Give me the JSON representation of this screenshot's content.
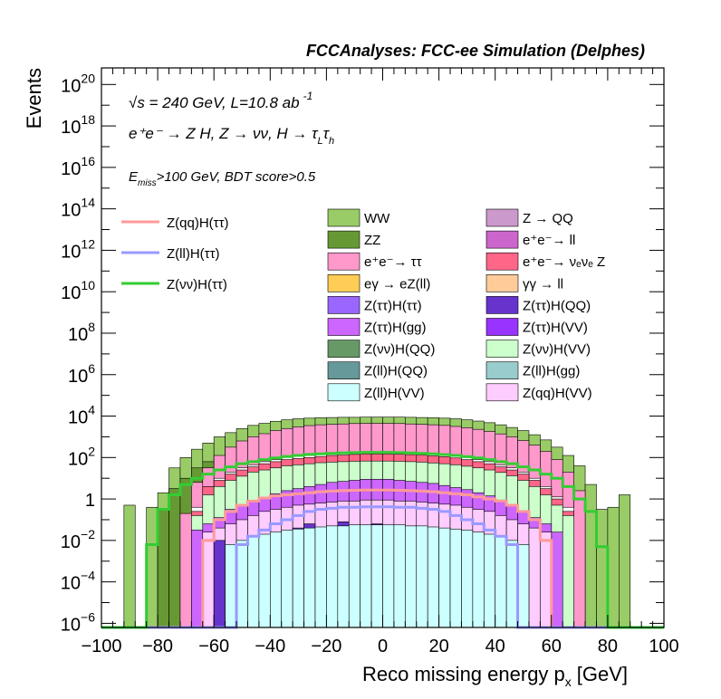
{
  "chart_data": {
    "type": "area",
    "title": "FCCAnalyses: FCC-ee Simulation (Delphes)",
    "xlabel": "Reco missing energy p",
    "xlabel_sub": "x",
    "xlabel_unit": "[GeV]",
    "ylabel": "Events",
    "xlim": [
      -100,
      100
    ],
    "ylog": true,
    "ylim_log10": [
      -6.2,
      20.8
    ],
    "x_ticks": [
      "−100",
      "−80",
      "−60",
      "−40",
      "−20",
      "0",
      "20",
      "40",
      "60",
      "80",
      "100"
    ],
    "y_ticks": [
      {
        "exp": 20,
        "base": "10",
        "sup": "20"
      },
      {
        "exp": 18,
        "base": "10",
        "sup": "18"
      },
      {
        "exp": 16,
        "base": "10",
        "sup": "16"
      },
      {
        "exp": 14,
        "base": "10",
        "sup": "14"
      },
      {
        "exp": 12,
        "base": "10",
        "sup": "12"
      },
      {
        "exp": 10,
        "base": "10",
        "sup": "10"
      },
      {
        "exp": 8,
        "base": "10",
        "sup": "8"
      },
      {
        "exp": 6,
        "base": "10",
        "sup": "6"
      },
      {
        "exp": 4,
        "base": "10",
        "sup": "4"
      },
      {
        "exp": 2,
        "base": "10",
        "sup": "2"
      },
      {
        "exp": 0,
        "base": "1",
        "sup": ""
      },
      {
        "exp": -2,
        "base": "10",
        "sup": "−2"
      },
      {
        "exp": -4,
        "base": "10",
        "sup": "−4"
      },
      {
        "exp": -6,
        "base": "10",
        "sup": "−6"
      }
    ],
    "annotations": {
      "line1": "√s = 240 GeV, L=10.8 ab",
      "line1_sup": "-1",
      "line2": "e⁺e⁻ → Z H, Z → νν, H → τ",
      "line2_sub1": "L",
      "line2_tau": "τ",
      "line2_sub2": "h",
      "line3_pre": "E",
      "line3_sub": "miss",
      "line3_post": ">100 GeV, BDT score>0.5"
    },
    "bin_centers": [
      -98,
      -94,
      -90,
      -86,
      -82,
      -78,
      -74,
      -70,
      -66,
      -62,
      -58,
      -54,
      -50,
      -46,
      -42,
      -38,
      -34,
      -30,
      -26,
      -22,
      -18,
      -14,
      -10,
      -6,
      -2,
      2,
      6,
      10,
      14,
      18,
      22,
      26,
      30,
      34,
      38,
      42,
      46,
      50,
      54,
      58,
      62,
      66,
      70,
      74,
      78,
      82,
      86,
      90,
      94,
      98
    ],
    "stack_totals_log10": [
      {
        "name": "WW",
        "color": "#99cc66",
        "values": [
          -6.2,
          -6.2,
          -0.3,
          -6.2,
          -0.4,
          0.3,
          1.5,
          2.0,
          2.4,
          2.7,
          3.0,
          3.2,
          3.4,
          3.55,
          3.65,
          3.75,
          3.82,
          3.87,
          3.9,
          3.92,
          3.93,
          3.94,
          3.94,
          3.95,
          3.95,
          3.95,
          3.95,
          3.94,
          3.93,
          3.92,
          3.9,
          3.87,
          3.82,
          3.76,
          3.68,
          3.58,
          3.45,
          3.3,
          3.1,
          2.85,
          2.5,
          2.1,
          1.6,
          0.7,
          -0.5,
          -0.4,
          0.2,
          -6.2,
          -6.2,
          -6.2
        ]
      },
      {
        "name": "ZZ",
        "color": "#669933",
        "values": [
          -6.2,
          -6.2,
          -6.2,
          -6.2,
          -6.2,
          -0.5,
          0.5,
          1.0,
          1.5,
          1.8,
          2.0,
          2.2,
          2.35,
          2.45,
          2.55,
          2.62,
          2.7,
          2.75,
          2.8,
          2.82,
          2.85,
          2.88,
          2.9,
          2.9,
          2.9,
          2.9,
          2.9,
          2.88,
          2.86,
          2.82,
          2.78,
          2.72,
          2.66,
          2.58,
          2.48,
          2.36,
          2.2,
          2.0,
          1.75,
          1.4,
          1.0,
          0.5,
          -0.2,
          -6.2,
          -6.2,
          -6.2,
          -6.2,
          -6.2,
          -6.2,
          -6.2
        ]
      },
      {
        "name": "e⁺e⁻→ ττ",
        "color": "#ff99cc",
        "values": [
          -6.2,
          -6.2,
          -6.2,
          -6.2,
          -6.2,
          -6.2,
          -6.2,
          -0.7,
          0.8,
          1.5,
          2.1,
          2.5,
          2.8,
          3.0,
          3.15,
          3.3,
          3.4,
          3.48,
          3.54,
          3.58,
          3.6,
          3.62,
          3.64,
          3.65,
          3.65,
          3.65,
          3.64,
          3.62,
          3.6,
          3.58,
          3.55,
          3.5,
          3.44,
          3.36,
          3.26,
          3.14,
          3.0,
          2.82,
          2.6,
          2.3,
          1.9,
          1.3,
          0.4,
          -6.2,
          -6.2,
          -6.2,
          -6.2,
          -6.2,
          -6.2,
          -6.2
        ]
      },
      {
        "name": "Z(νν)H(ττ) stack",
        "color": "#ffffff",
        "values": [
          -6.2,
          -6.2,
          -6.2,
          -6.2,
          -6.2,
          -6.2,
          -6.2,
          -6.2,
          -0.4,
          0.6,
          1.0,
          1.3,
          1.5,
          1.65,
          1.8,
          1.9,
          2.0,
          2.05,
          2.1,
          2.15,
          2.2,
          2.22,
          2.25,
          2.27,
          2.27,
          2.27,
          2.26,
          2.24,
          2.22,
          2.18,
          2.14,
          2.08,
          2.0,
          1.9,
          1.8,
          1.65,
          1.5,
          1.3,
          1.0,
          0.6,
          0.1,
          -0.4,
          -6.2,
          -6.2,
          -6.2,
          -6.2,
          -6.2,
          -6.2,
          -6.2,
          -6.2
        ]
      },
      {
        "name": "e⁺e⁻→ νₑνₑ Z",
        "color": "#ff6688",
        "values": [
          -6.2,
          -6.2,
          -6.2,
          -6.2,
          -6.2,
          -6.2,
          -6.2,
          -6.2,
          -0.6,
          0.6,
          0.9,
          1.2,
          1.4,
          1.55,
          1.7,
          1.8,
          1.9,
          1.95,
          2.0,
          2.05,
          2.1,
          2.12,
          2.15,
          2.17,
          2.17,
          2.17,
          2.16,
          2.14,
          2.12,
          2.08,
          2.04,
          1.98,
          1.9,
          1.8,
          1.7,
          1.55,
          1.4,
          1.2,
          0.9,
          0.5,
          0.0,
          -0.6,
          -6.2,
          -6.2,
          -6.2,
          -6.2,
          -6.2,
          -6.2,
          -6.2,
          -6.2
        ]
      },
      {
        "name": "Z(νν)H(VV)",
        "color": "#ccffcc",
        "values": [
          -6.2,
          -6.2,
          -6.2,
          -6.2,
          -6.2,
          -6.2,
          -6.2,
          -6.2,
          -0.8,
          0.2,
          0.6,
          0.9,
          1.1,
          1.3,
          1.4,
          1.5,
          1.6,
          1.65,
          1.7,
          1.75,
          1.78,
          1.8,
          1.82,
          1.83,
          1.83,
          1.83,
          1.82,
          1.8,
          1.78,
          1.74,
          1.7,
          1.65,
          1.58,
          1.5,
          1.4,
          1.28,
          1.12,
          0.9,
          0.6,
          0.2,
          -0.3,
          -0.8,
          -6.2,
          -6.2,
          -6.2,
          -6.2,
          -6.2,
          -6.2,
          -6.2,
          -6.2
        ]
      },
      {
        "name": "Z(ττ)H(gg)",
        "color": "#cc66ff",
        "values": [
          -6.2,
          -6.2,
          -6.2,
          -6.2,
          -6.2,
          -6.2,
          -6.2,
          -6.2,
          -1.5,
          -1.2,
          -0.9,
          -0.5,
          -0.3,
          -0.1,
          0.1,
          0.25,
          0.4,
          0.5,
          0.6,
          0.7,
          0.8,
          0.85,
          0.9,
          0.95,
          0.95,
          0.95,
          0.9,
          0.85,
          0.8,
          0.75,
          0.65,
          0.55,
          0.45,
          0.3,
          0.15,
          -0.05,
          -0.3,
          -0.6,
          -0.9,
          -1.2,
          -1.6,
          -6.2,
          -6.2,
          -6.2,
          -6.2,
          -6.2,
          -6.2,
          -6.2,
          -6.2,
          -6.2
        ]
      },
      {
        "name": "Z(qq)H(VV)",
        "color": "#ffccff",
        "values": [
          -6.2,
          -6.2,
          -6.2,
          -6.2,
          -6.2,
          -6.2,
          -6.2,
          -6.2,
          -6.2,
          -1.6,
          -1.4,
          -1.2,
          -1.0,
          -0.8,
          -0.6,
          -0.5,
          -0.4,
          -0.3,
          -0.25,
          -0.2,
          -0.15,
          -0.1,
          -0.1,
          -0.05,
          -0.05,
          -0.05,
          -0.1,
          -0.1,
          -0.15,
          -0.2,
          -0.25,
          -0.3,
          -0.4,
          -0.5,
          -0.6,
          -0.8,
          -1.0,
          -1.2,
          -1.4,
          -1.6,
          -6.2,
          -6.2,
          -6.2,
          -6.2,
          -6.2,
          -6.2,
          -6.2,
          -6.2,
          -6.2,
          -6.2
        ]
      },
      {
        "name": "Z(ττ)H(QQ)",
        "color": "#6633cc",
        "values": [
          -6.2,
          -6.2,
          -6.2,
          -6.2,
          -6.2,
          -6.2,
          -6.2,
          -6.2,
          -6.2,
          -6.2,
          -2.0,
          -6.2,
          -2.2,
          -6.2,
          -2.4,
          -6.2,
          -1.8,
          -1.4,
          -1.2,
          -1.5,
          -1.3,
          -1.1,
          -1.3,
          -1.5,
          -1.2,
          -1.4,
          -1.6,
          -1.3,
          -1.4,
          -1.7,
          -1.5,
          -1.9,
          -6.2,
          -2.2,
          -6.2,
          -2.5,
          -6.2,
          -6.2,
          -6.2,
          -6.2,
          -6.2,
          -6.2,
          -6.2,
          -6.2,
          -6.2,
          -6.2,
          -6.2,
          -6.2,
          -6.2,
          -6.2
        ]
      },
      {
        "name": "Z(ll)H(VV)",
        "color": "#ccffff",
        "values": [
          -6.2,
          -6.2,
          -6.2,
          -6.2,
          -6.2,
          -6.2,
          -6.2,
          -6.2,
          -6.2,
          -6.2,
          -6.2,
          -2.2,
          -2.0,
          -1.8,
          -1.7,
          -1.6,
          -1.5,
          -1.45,
          -1.4,
          -1.35,
          -1.3,
          -1.3,
          -1.25,
          -1.25,
          -1.25,
          -1.25,
          -1.25,
          -1.3,
          -1.3,
          -1.35,
          -1.4,
          -1.45,
          -1.5,
          -1.6,
          -1.7,
          -1.8,
          -2.0,
          -2.2,
          -6.2,
          -6.2,
          -6.2,
          -6.2,
          -6.2,
          -6.2,
          -6.2,
          -6.2,
          -6.2,
          -6.2,
          -6.2,
          -6.2
        ]
      }
    ],
    "overlay_lines": [
      {
        "name": "Z(qq)H(ττ)",
        "color": "#ff9999",
        "values": [
          -6.2,
          -6.2,
          -6.2,
          -6.2,
          -6.2,
          -6.2,
          -6.2,
          -6.2,
          -6.2,
          -2.0,
          -1.0,
          -0.6,
          -0.3,
          -0.1,
          0.05,
          0.15,
          0.2,
          0.25,
          0.3,
          0.35,
          0.38,
          0.4,
          0.42,
          0.43,
          0.43,
          0.43,
          0.42,
          0.4,
          0.38,
          0.35,
          0.3,
          0.25,
          0.2,
          0.1,
          0.0,
          -0.1,
          -0.3,
          -0.6,
          -1.0,
          -2.0,
          -6.2,
          -6.2,
          -6.2,
          -6.2,
          -6.2,
          -6.2,
          -6.2,
          -6.2,
          -6.2,
          -6.2
        ]
      },
      {
        "name": "Z(ll)H(ττ)",
        "color": "#9999ff",
        "values": [
          -6.2,
          -6.2,
          -6.2,
          -6.2,
          -6.2,
          -6.2,
          -6.2,
          -6.2,
          -6.2,
          -6.2,
          -6.2,
          -6.2,
          -2.2,
          -1.8,
          -1.5,
          -1.2,
          -1.0,
          -0.8,
          -0.6,
          -0.5,
          -0.45,
          -0.4,
          -0.4,
          -0.38,
          -0.38,
          -0.38,
          -0.4,
          -0.4,
          -0.45,
          -0.5,
          -0.6,
          -0.8,
          -1.0,
          -1.2,
          -1.5,
          -1.8,
          -2.2,
          -6.2,
          -6.2,
          -6.2,
          -6.2,
          -6.2,
          -6.2,
          -6.2,
          -6.2,
          -6.2,
          -6.2,
          -6.2,
          -6.2,
          -6.2
        ]
      },
      {
        "name": "Z(νν)H(ττ)",
        "color": "#33cc33",
        "values": [
          -6.2,
          -6.2,
          -6.2,
          -6.2,
          -2.2,
          -0.5,
          0.2,
          0.7,
          1.0,
          1.2,
          1.4,
          1.55,
          1.7,
          1.8,
          1.9,
          1.98,
          2.05,
          2.1,
          2.15,
          2.18,
          2.2,
          2.22,
          2.24,
          2.25,
          2.25,
          2.25,
          2.24,
          2.22,
          2.2,
          2.18,
          2.14,
          2.1,
          2.04,
          1.98,
          1.9,
          1.8,
          1.7,
          1.55,
          1.4,
          1.2,
          1.0,
          0.6,
          0.0,
          -0.6,
          -2.3,
          -6.2,
          -6.2,
          -6.2,
          -6.2,
          -6.2
        ]
      }
    ],
    "legend_lines": [
      {
        "label": "Z(qq)H(ττ)",
        "color": "#ff9999"
      },
      {
        "label": "Z(ll)H(ττ)",
        "color": "#9999ff"
      },
      {
        "label": "Z(νν)H(ττ)",
        "color": "#33cc33"
      }
    ],
    "legend_fills": [
      {
        "label": "WW",
        "color": "#99cc66"
      },
      {
        "label": "Z → QQ",
        "color": "#cc99cc"
      },
      {
        "label": "ZZ",
        "color": "#669933"
      },
      {
        "label": "e⁺e⁻→ ll",
        "color": "#cc66cc"
      },
      {
        "label": "e⁺e⁻→ ττ",
        "color": "#ff99cc"
      },
      {
        "label": "e⁺e⁻→ νₑνₑ Z",
        "color": "#ff6688"
      },
      {
        "label": "eγ → eZ(ll)",
        "color": "#ffcc55"
      },
      {
        "label": "γγ → ll",
        "color": "#ffcc99"
      },
      {
        "label": "Z(ττ)H(ττ)",
        "color": "#9966ff"
      },
      {
        "label": "Z(ττ)H(QQ)",
        "color": "#6633cc"
      },
      {
        "label": "Z(ττ)H(gg)",
        "color": "#cc66ff"
      },
      {
        "label": "Z(ττ)H(VV)",
        "color": "#9933ff"
      },
      {
        "label": "Z(νν)H(QQ)",
        "color": "#669966"
      },
      {
        "label": "Z(νν)H(VV)",
        "color": "#ccffcc"
      },
      {
        "label": "Z(ll)H(QQ)",
        "color": "#669999"
      },
      {
        "label": "Z(ll)H(gg)",
        "color": "#99cccc"
      },
      {
        "label": "Z(ll)H(VV)",
        "color": "#ccffff"
      },
      {
        "label": "Z(qq)H(VV)",
        "color": "#ffccff"
      }
    ]
  }
}
